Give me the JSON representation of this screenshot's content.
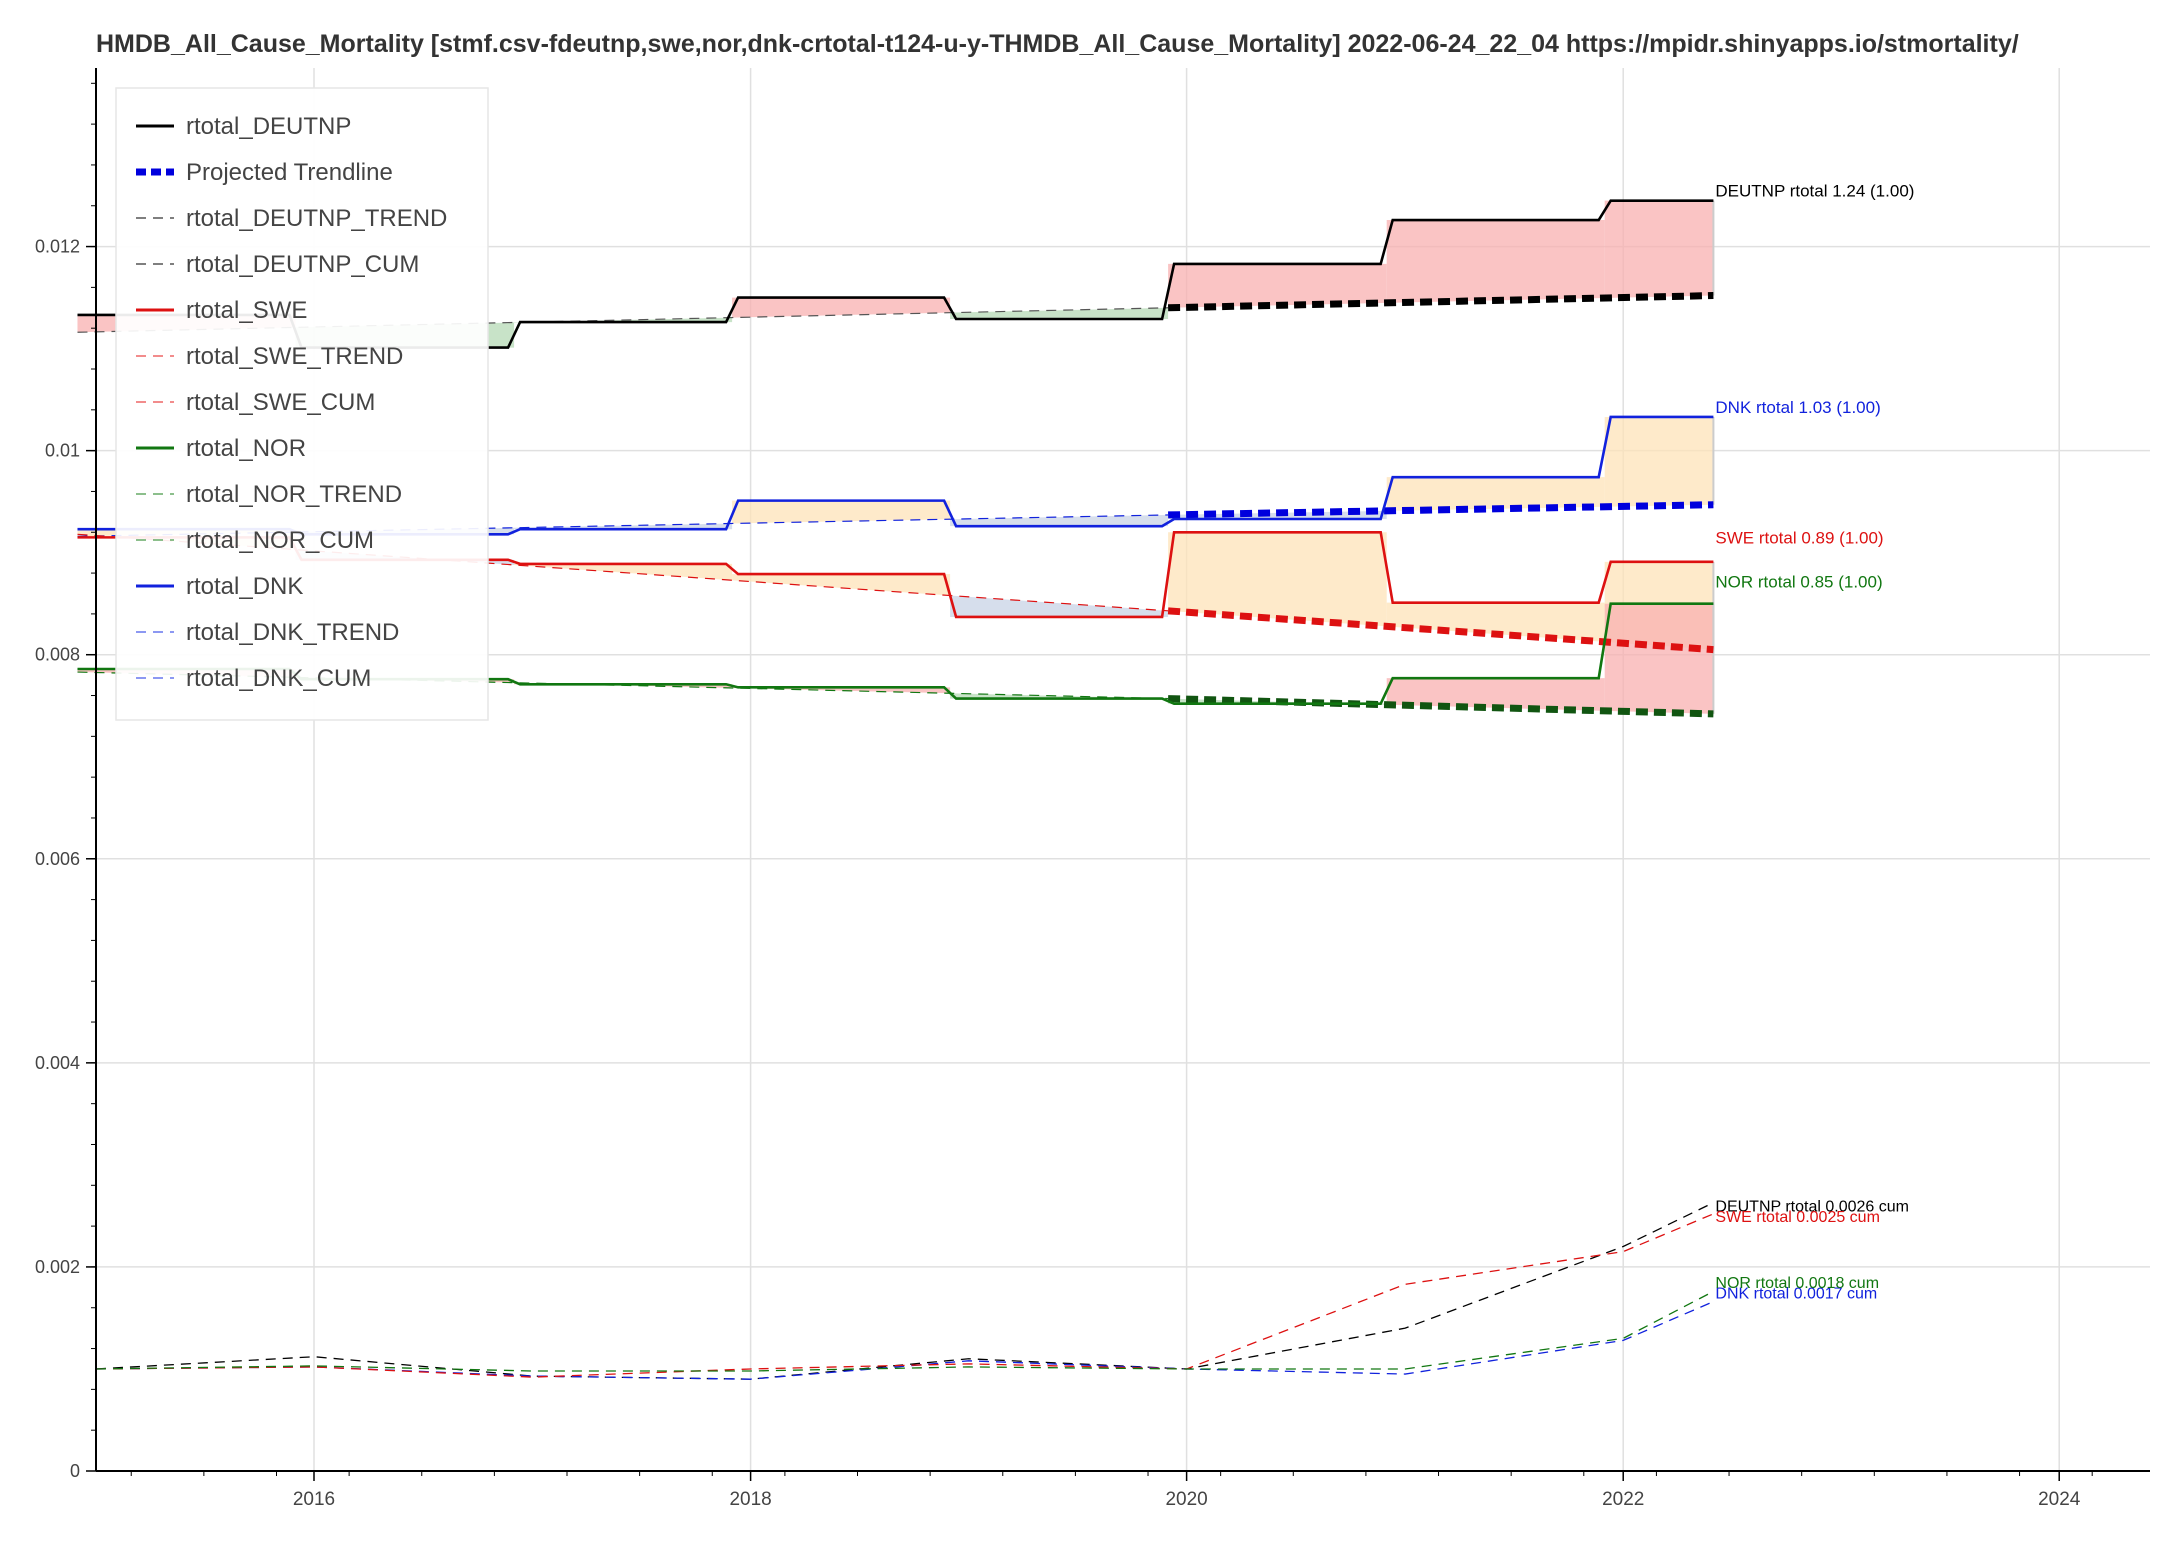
{
  "chart_data": {
    "type": "line",
    "title": "HMDB_All_Cause_Mortality [stmf.csv-fdeutnp,swe,nor,dnk-crtotal-t124-u-y-THMDB_All_Cause_Mortality] 2022-06-24_22_04  https://mpidr.shinyapps.io/stmortality/",
    "xlabel": "",
    "ylabel": "",
    "x_axis": {
      "type": "date",
      "range": [
        "2015-01-01",
        "2024-06-01"
      ],
      "ticks": [
        "2016-01-01",
        "2018-01-01",
        "2020-01-01",
        "2022-01-01",
        "2024-01-01"
      ],
      "tick_labels": [
        "2016",
        "2018",
        "2020",
        "2022",
        "2024"
      ]
    },
    "y_axis": {
      "range": [
        0,
        0.01375
      ],
      "ticks": [
        0,
        0.002,
        0.004,
        0.006,
        0.008,
        0.01,
        0.012
      ],
      "tick_labels": [
        "0",
        "0.002",
        "0.004",
        "0.006",
        "0.008",
        "0.01",
        "0.012"
      ]
    },
    "grid": true,
    "legend_position": "top-left",
    "legend": [
      {
        "label": "rtotal_DEUTNP",
        "color": "#000000",
        "style": "solid"
      },
      {
        "label": "Projected Trendline",
        "color": "#0000dd",
        "style": "bold-dashed"
      },
      {
        "label": "rtotal_DEUTNP_TREND",
        "color": "#555555",
        "style": "dashed"
      },
      {
        "label": "rtotal_DEUTNP_CUM",
        "color": "#555555",
        "style": "dashed"
      },
      {
        "label": "rtotal_SWE",
        "color": "#dd1111",
        "style": "solid"
      },
      {
        "label": "rtotal_SWE_TREND",
        "color": "#ee6666",
        "style": "dashed"
      },
      {
        "label": "rtotal_SWE_CUM",
        "color": "#ee6666",
        "style": "dashed"
      },
      {
        "label": "rtotal_NOR",
        "color": "#117711",
        "style": "solid"
      },
      {
        "label": "rtotal_NOR_TREND",
        "color": "#66aa66",
        "style": "dashed"
      },
      {
        "label": "rtotal_NOR_CUM",
        "color": "#66aa66",
        "style": "dashed"
      },
      {
        "label": "rtotal_DNK",
        "color": "#1122dd",
        "style": "solid"
      },
      {
        "label": "rtotal_DNK_TREND",
        "color": "#6677ee",
        "style": "dashed"
      },
      {
        "label": "rtotal_DNK_CUM",
        "color": "#6677ee",
        "style": "dashed"
      }
    ],
    "series": [
      {
        "key": "DEUTNP",
        "color": "#000000",
        "trend_color": "#000000",
        "steps": [
          {
            "x0": "2014-12-01",
            "x1": "2015-12-01",
            "y": 0.01133
          },
          {
            "x0": "2015-12-01",
            "x1": "2016-12-01",
            "y": 0.01101
          },
          {
            "x0": "2016-12-01",
            "x1": "2017-12-01",
            "y": 0.01126
          },
          {
            "x0": "2017-12-01",
            "x1": "2018-12-01",
            "y": 0.0115
          },
          {
            "x0": "2018-12-01",
            "x1": "2019-12-01",
            "y": 0.01129
          },
          {
            "x0": "2019-12-01",
            "x1": "2020-12-01",
            "y": 0.01183
          },
          {
            "x0": "2020-12-01",
            "x1": "2021-12-01",
            "y": 0.01226
          },
          {
            "x0": "2021-12-01",
            "x1": "2022-06-01",
            "y": 0.01245
          }
        ],
        "trend": [
          {
            "x": "2014-12-01",
            "y": 0.01116
          },
          {
            "x": "2019-12-01",
            "y": 0.0114
          }
        ],
        "projected": [
          {
            "x": "2019-12-01",
            "y": 0.0114
          },
          {
            "x": "2022-06-01",
            "y": 0.01152
          }
        ],
        "cum": [
          {
            "x": "2015-01-01",
            "y": 0.001
          },
          {
            "x": "2016-01-01",
            "y": 0.00112
          },
          {
            "x": "2017-01-01",
            "y": 0.00093
          },
          {
            "x": "2018-01-01",
            "y": 0.0009
          },
          {
            "x": "2019-01-01",
            "y": 0.0011
          },
          {
            "x": "2020-01-01",
            "y": 0.001
          },
          {
            "x": "2021-01-01",
            "y": 0.0014
          },
          {
            "x": "2022-01-01",
            "y": 0.0022
          },
          {
            "x": "2022-06-01",
            "y": 0.00263
          }
        ],
        "label": "DEUTNP rtotal 1.24 (1.00)",
        "label_y": 0.01245,
        "cum_label": "DEUTNP rtotal 0.0026 cum",
        "cum_label_y": 0.0026
      },
      {
        "key": "DNK",
        "color": "#1122dd",
        "trend_color": "#0000dd",
        "steps": [
          {
            "x0": "2014-12-01",
            "x1": "2015-12-01",
            "y": 0.00923
          },
          {
            "x0": "2015-12-01",
            "x1": "2016-12-01",
            "y": 0.00918
          },
          {
            "x0": "2016-12-01",
            "x1": "2017-12-01",
            "y": 0.00923
          },
          {
            "x0": "2017-12-01",
            "x1": "2018-12-01",
            "y": 0.00951
          },
          {
            "x0": "2018-12-01",
            "x1": "2019-12-01",
            "y": 0.00926
          },
          {
            "x0": "2019-12-01",
            "x1": "2020-12-01",
            "y": 0.00933
          },
          {
            "x0": "2020-12-01",
            "x1": "2021-12-01",
            "y": 0.00974
          },
          {
            "x0": "2021-12-01",
            "x1": "2022-06-01",
            "y": 0.01033
          }
        ],
        "trend": [
          {
            "x": "2014-12-01",
            "y": 0.00916
          },
          {
            "x": "2019-12-01",
            "y": 0.00937
          }
        ],
        "projected": [
          {
            "x": "2019-12-01",
            "y": 0.00937
          },
          {
            "x": "2022-06-01",
            "y": 0.00947
          }
        ],
        "cum": [
          {
            "x": "2015-01-01",
            "y": 0.001
          },
          {
            "x": "2016-01-01",
            "y": 0.00102
          },
          {
            "x": "2017-01-01",
            "y": 0.00093
          },
          {
            "x": "2018-01-01",
            "y": 0.0009
          },
          {
            "x": "2019-01-01",
            "y": 0.00108
          },
          {
            "x": "2020-01-01",
            "y": 0.001
          },
          {
            "x": "2021-01-01",
            "y": 0.00095
          },
          {
            "x": "2022-01-01",
            "y": 0.00128
          },
          {
            "x": "2022-06-01",
            "y": 0.00166
          }
        ],
        "label": "DNK rtotal 1.03 (1.00)",
        "label_y": 0.01033,
        "cum_label": "DNK rtotal 0.0017 cum",
        "cum_label_y": 0.00175
      },
      {
        "key": "SWE",
        "color": "#dd1111",
        "trend_color": "#dd1111",
        "steps": [
          {
            "x0": "2014-12-01",
            "x1": "2015-12-01",
            "y": 0.00915
          },
          {
            "x0": "2015-12-01",
            "x1": "2016-12-01",
            "y": 0.00893
          },
          {
            "x0": "2016-12-01",
            "x1": "2017-12-01",
            "y": 0.00889
          },
          {
            "x0": "2017-12-01",
            "x1": "2018-12-01",
            "y": 0.00879
          },
          {
            "x0": "2018-12-01",
            "x1": "2019-12-01",
            "y": 0.00837
          },
          {
            "x0": "2019-12-01",
            "x1": "2020-12-01",
            "y": 0.0092
          },
          {
            "x0": "2020-12-01",
            "x1": "2021-12-01",
            "y": 0.00851
          },
          {
            "x0": "2021-12-01",
            "x1": "2022-06-01",
            "y": 0.00891
          }
        ],
        "trend": [
          {
            "x": "2014-12-01",
            "y": 0.00918
          },
          {
            "x": "2019-12-01",
            "y": 0.00843
          }
        ],
        "projected": [
          {
            "x": "2019-12-01",
            "y": 0.00843
          },
          {
            "x": "2022-06-01",
            "y": 0.00805
          }
        ],
        "cum": [
          {
            "x": "2015-01-01",
            "y": 0.001
          },
          {
            "x": "2016-01-01",
            "y": 0.00102
          },
          {
            "x": "2017-01-01",
            "y": 0.00092
          },
          {
            "x": "2018-01-01",
            "y": 0.001
          },
          {
            "x": "2019-01-01",
            "y": 0.00105
          },
          {
            "x": "2020-01-01",
            "y": 0.001
          },
          {
            "x": "2021-01-01",
            "y": 0.00183
          },
          {
            "x": "2022-01-01",
            "y": 0.00215
          },
          {
            "x": "2022-06-01",
            "y": 0.00252
          }
        ],
        "label": "SWE rtotal 0.89 (1.00)",
        "label_y": 0.00905,
        "cum_label": "SWE rtotal 0.0025 cum",
        "cum_label_y": 0.0025
      },
      {
        "key": "NOR",
        "color": "#117711",
        "trend_color": "#115511",
        "steps": [
          {
            "x0": "2014-12-01",
            "x1": "2015-12-01",
            "y": 0.00786
          },
          {
            "x0": "2015-12-01",
            "x1": "2016-12-01",
            "y": 0.00776
          },
          {
            "x0": "2016-12-01",
            "x1": "2017-12-01",
            "y": 0.00771
          },
          {
            "x0": "2017-12-01",
            "x1": "2018-12-01",
            "y": 0.00768
          },
          {
            "x0": "2018-12-01",
            "x1": "2019-12-01",
            "y": 0.00757
          },
          {
            "x0": "2019-12-01",
            "x1": "2020-12-01",
            "y": 0.00752
          },
          {
            "x0": "2020-12-01",
            "x1": "2021-12-01",
            "y": 0.00777
          },
          {
            "x0": "2021-12-01",
            "x1": "2022-06-01",
            "y": 0.0085
          }
        ],
        "trend": [
          {
            "x": "2014-12-01",
            "y": 0.00783
          },
          {
            "x": "2019-12-01",
            "y": 0.00757
          }
        ],
        "projected": [
          {
            "x": "2019-12-01",
            "y": 0.00757
          },
          {
            "x": "2022-06-01",
            "y": 0.00742
          }
        ],
        "cum": [
          {
            "x": "2015-01-01",
            "y": 0.001
          },
          {
            "x": "2016-01-01",
            "y": 0.00103
          },
          {
            "x": "2017-01-01",
            "y": 0.00098
          },
          {
            "x": "2018-01-01",
            "y": 0.00098
          },
          {
            "x": "2019-01-01",
            "y": 0.00102
          },
          {
            "x": "2020-01-01",
            "y": 0.001
          },
          {
            "x": "2021-01-01",
            "y": 0.001
          },
          {
            "x": "2022-01-01",
            "y": 0.0013
          },
          {
            "x": "2022-06-01",
            "y": 0.00176
          }
        ],
        "label": "NOR rtotal 0.85 (1.00)",
        "label_y": 0.00862,
        "cum_label": "NOR rtotal 0.0018 cum",
        "cum_label_y": 0.00185
      }
    ],
    "fill_colors": {
      "above": "#f8b0b0",
      "below": "#b5d9b5",
      "warm": "#fde3b8",
      "cool": "#c8d3e6"
    }
  }
}
